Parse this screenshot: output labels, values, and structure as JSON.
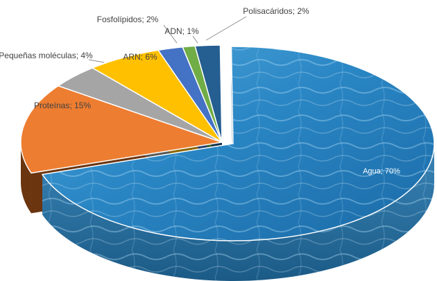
{
  "chart_data": {
    "type": "pie",
    "title": "",
    "exploded": [
      "Agua"
    ],
    "slices": [
      {
        "name": "Agua",
        "value": 70,
        "label": "Agua; 70%",
        "color": "#2c7fb8",
        "side": "#1c5f8f"
      },
      {
        "name": "Proteínas",
        "value": 15,
        "label": "Proteínas; 15%",
        "color": "#ed7d31",
        "side": "#6b3510"
      },
      {
        "name": "Pequeñas moléculas",
        "value": 4,
        "label": "Pequeñas moléculas; 4%",
        "color": "#a5a5a5",
        "side": "#595959"
      },
      {
        "name": "ARN",
        "value": 6,
        "label": "ARN; 6%",
        "color": "#ffc000",
        "side": "#8a6700"
      },
      {
        "name": "Fosfolípidos",
        "value": 2,
        "label": "Fosfolípidos; 2%",
        "color": "#4472c4",
        "side": "#23406f"
      },
      {
        "name": "ADN",
        "value": 1,
        "label": "ADN; 1%",
        "color": "#70ad47",
        "side": "#3d6126"
      },
      {
        "name": "Polisacáridos",
        "value": 2,
        "label": "Polisacáridos; 2%",
        "color": "#255e91",
        "side": "#13324d"
      }
    ],
    "legend": "none"
  }
}
